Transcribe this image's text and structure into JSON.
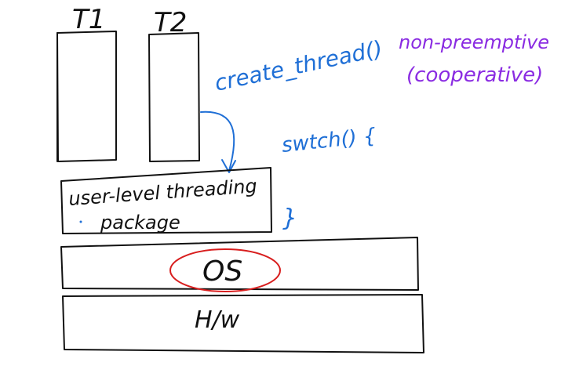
{
  "threads": {
    "t1_label": "T1",
    "t2_label": "T2"
  },
  "notes": {
    "create_thread": "create_thread()",
    "switch": "swtch() {",
    "switch_close": "}",
    "nonpreemptive_line1": "non-preemptive",
    "nonpreemptive_line2": "(cooperative)"
  },
  "layers": {
    "package_line1": "user-level threading",
    "package_line2": "package",
    "os": "OS",
    "hw": "H/w"
  },
  "colors": {
    "black_ink": "#111111",
    "blue_ink": "#1f6fd6",
    "red_ink": "#d81e1e",
    "purple_ink": "#8a2be2"
  }
}
